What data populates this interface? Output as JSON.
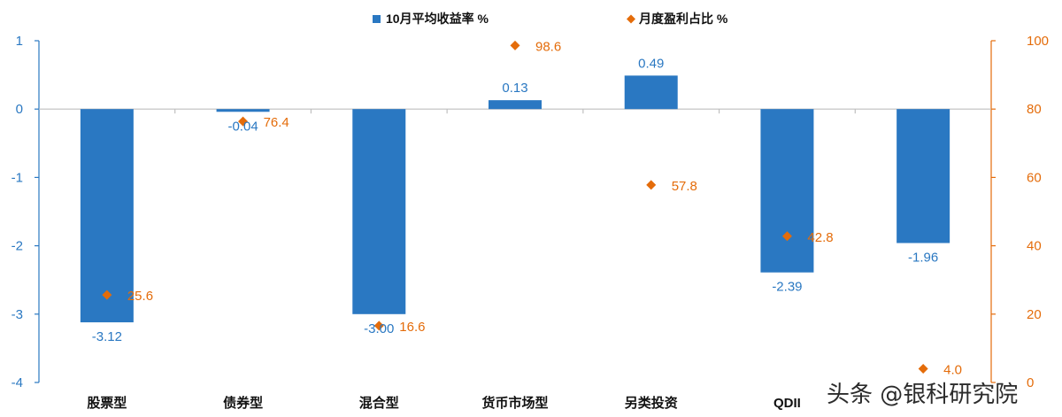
{
  "chart_data": {
    "type": "bar",
    "categories": [
      "股票型",
      "债券型",
      "混合型",
      "货币市场型",
      "另类投资",
      "QDII",
      ""
    ],
    "series": [
      {
        "name": "10月平均收益率 %",
        "type": "bar",
        "axis": "left",
        "color": "#2a78c2",
        "values": [
          -3.12,
          -0.04,
          -3.0,
          0.13,
          0.49,
          -2.39,
          -1.96
        ],
        "labels": [
          "-3.12",
          "-0.04",
          "-3.00",
          "0.13",
          "0.49",
          "-2.39",
          "-1.96"
        ]
      },
      {
        "name": "月度盈利占比 %",
        "type": "scatter",
        "marker": "diamond",
        "axis": "right",
        "color": "#e46c0a",
        "values": [
          25.6,
          76.4,
          16.6,
          98.6,
          57.8,
          42.8,
          4.0
        ],
        "labels": [
          "25.6",
          "76.4",
          "16.6",
          "98.6",
          "57.8",
          "42.8",
          "4.0"
        ]
      }
    ],
    "left_axis": {
      "ylim": [
        -4,
        1
      ],
      "ticks": [
        "1",
        "0",
        "-1",
        "-2",
        "-3",
        "-4"
      ],
      "color": "#2a78c2"
    },
    "right_axis": {
      "ylim": [
        0,
        100
      ],
      "ticks": [
        "100",
        "80",
        "60",
        "40",
        "20",
        "0"
      ],
      "color": "#e46c0a"
    },
    "legend_position": "top-center",
    "grid": false
  },
  "watermark": "头条 @银科研究院"
}
